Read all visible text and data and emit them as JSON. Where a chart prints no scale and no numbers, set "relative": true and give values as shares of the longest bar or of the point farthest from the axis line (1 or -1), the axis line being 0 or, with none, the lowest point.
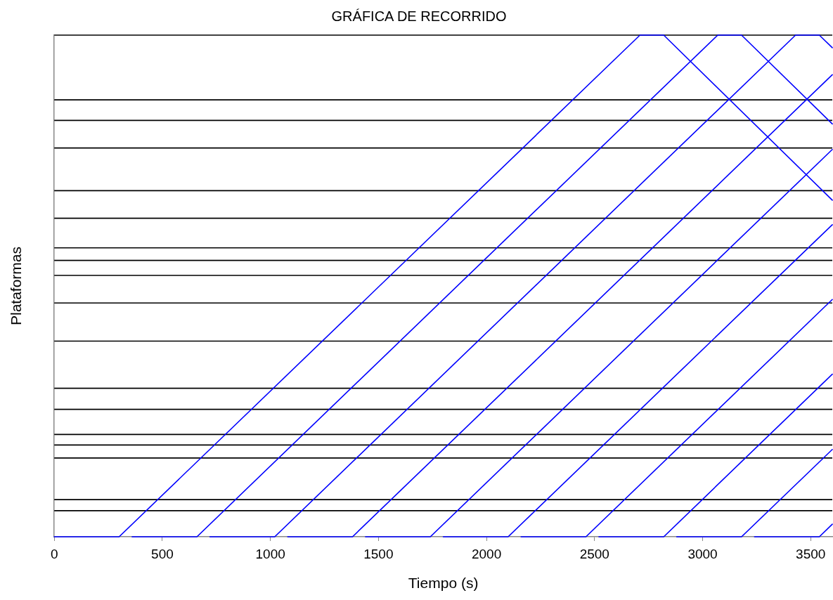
{
  "chart_data": {
    "type": "line",
    "title": "GRÁFICA DE RECORRIDO",
    "xlabel": "Tiempo (s)",
    "ylabel": "Plataformas",
    "relative": true,
    "xlim": [
      0,
      3600
    ],
    "xticks": [
      0,
      500,
      1000,
      1500,
      2000,
      2500,
      3000,
      3500
    ],
    "grid": false,
    "legend": false,
    "marker": "none",
    "line_style": "solid",
    "tick_labels": "x",
    "ref_lines": [
      {
        "axis": "y",
        "value": 1,
        "color": "#000000"
      },
      {
        "axis": "y",
        "value": 0.871,
        "color": "#000000"
      },
      {
        "axis": "y",
        "value": 0.83,
        "color": "#000000"
      },
      {
        "axis": "y",
        "value": 0.775,
        "color": "#000000"
      },
      {
        "axis": "y",
        "value": 0.69,
        "color": "#000000"
      },
      {
        "axis": "y",
        "value": 0.635,
        "color": "#000000"
      },
      {
        "axis": "y",
        "value": 0.576,
        "color": "#000000"
      },
      {
        "axis": "y",
        "value": 0.551,
        "color": "#000000"
      },
      {
        "axis": "y",
        "value": 0.521,
        "color": "#000000"
      },
      {
        "axis": "y",
        "value": 0.466,
        "color": "#000000"
      },
      {
        "axis": "y",
        "value": 0.39,
        "color": "#000000"
      },
      {
        "axis": "y",
        "value": 0.296,
        "color": "#000000"
      },
      {
        "axis": "y",
        "value": 0.254,
        "color": "#000000"
      },
      {
        "axis": "y",
        "value": 0.204,
        "color": "#000000"
      },
      {
        "axis": "y",
        "value": 0.183,
        "color": "#000000"
      },
      {
        "axis": "y",
        "value": 0.157,
        "color": "#000000"
      },
      {
        "axis": "y",
        "value": 0.074,
        "color": "#000000"
      },
      {
        "axis": "y",
        "value": 0.052,
        "color": "#000000"
      }
    ],
    "series": [
      {
        "color": "#0000ff",
        "x": [
          0,
          300,
          2710,
          2820,
          3600
        ],
        "values": [
          0,
          0,
          1,
          1,
          0.671
        ]
      },
      {
        "color": "#0000ff",
        "x": [
          360,
          660,
          3070,
          3180,
          3600
        ],
        "values": [
          0,
          0,
          1,
          1,
          0.823
        ]
      },
      {
        "color": "#0000ff",
        "x": [
          720,
          1020,
          3430,
          3540,
          3600
        ],
        "values": [
          0,
          0,
          1,
          1,
          0.975
        ]
      },
      {
        "color": "#0000ff",
        "x": [
          1080,
          1380,
          3600
        ],
        "values": [
          0,
          0,
          0.921
        ]
      },
      {
        "color": "#0000ff",
        "x": [
          1440,
          1740,
          3600
        ],
        "values": [
          0,
          0,
          0.772
        ]
      },
      {
        "color": "#0000ff",
        "x": [
          1800,
          2100,
          3600
        ],
        "values": [
          0,
          0,
          0.622
        ]
      },
      {
        "color": "#0000ff",
        "x": [
          2160,
          2460,
          3600
        ],
        "values": [
          0,
          0,
          0.473
        ]
      },
      {
        "color": "#0000ff",
        "x": [
          2520,
          2820,
          3600
        ],
        "values": [
          0,
          0,
          0.324
        ]
      },
      {
        "color": "#0000ff",
        "x": [
          2880,
          3180,
          3600
        ],
        "values": [
          0,
          0,
          0.174
        ]
      },
      {
        "color": "#0000ff",
        "x": [
          3240,
          3540,
          3600
        ],
        "values": [
          0,
          0,
          0.025
        ]
      }
    ]
  }
}
